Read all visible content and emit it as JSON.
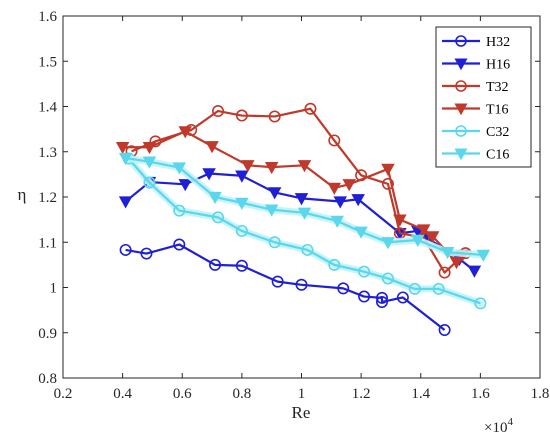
{
  "chart_data": {
    "type": "line",
    "xlabel": "Re",
    "ylabel": "η",
    "x_multiplier_label": "×10",
    "x_multiplier_exp": "4",
    "xlim": [
      0.2,
      1.8
    ],
    "ylim": [
      0.8,
      1.6
    ],
    "x_ticks": [
      "0.2",
      "0.4",
      "0.6",
      "0.8",
      "1",
      "1.2",
      "1.4",
      "1.6",
      "1.8"
    ],
    "y_ticks": [
      "0.8",
      "0.9",
      "1",
      "1.1",
      "1.2",
      "1.3",
      "1.4",
      "1.5",
      "1.6"
    ],
    "x_tick_values": [
      0.2,
      0.4,
      0.6,
      0.8,
      1.0,
      1.2,
      1.4,
      1.6,
      1.8
    ],
    "y_tick_values": [
      0.8,
      0.9,
      1.0,
      1.1,
      1.2,
      1.3,
      1.4,
      1.5,
      1.6
    ],
    "legend_position": "top-right",
    "grid": false,
    "series": [
      {
        "name": "H32",
        "color": "#1f1fd6",
        "marker": "circle",
        "x": [
          0.41,
          0.48,
          0.59,
          0.71,
          0.8,
          0.92,
          1.0,
          1.14,
          1.21,
          1.27,
          1.27,
          1.34,
          1.48
        ],
        "y": [
          1.083,
          1.075,
          1.095,
          1.05,
          1.048,
          1.013,
          1.006,
          0.998,
          0.98,
          0.977,
          0.968,
          0.978,
          0.906
        ]
      },
      {
        "name": "H16",
        "color": "#1f1fd6",
        "marker": "triangle-down",
        "x": [
          0.41,
          0.49,
          0.61,
          0.69,
          0.8,
          0.91,
          1.0,
          1.13,
          1.19,
          1.33,
          1.39,
          1.42,
          1.53,
          1.58
        ],
        "y": [
          1.19,
          1.233,
          1.228,
          1.252,
          1.247,
          1.21,
          1.197,
          1.19,
          1.195,
          1.12,
          1.125,
          1.11,
          1.063,
          1.037
        ]
      },
      {
        "name": "T32",
        "color": "#c0392b",
        "marker": "circle",
        "x": [
          0.43,
          0.51,
          0.63,
          0.72,
          0.8,
          0.91,
          1.03,
          1.11,
          1.2,
          1.29,
          1.33,
          1.41,
          1.48,
          1.55
        ],
        "y": [
          1.301,
          1.323,
          1.348,
          1.39,
          1.38,
          1.378,
          1.395,
          1.325,
          1.248,
          1.229,
          1.12,
          1.11,
          1.033,
          1.076
        ]
      },
      {
        "name": "T16",
        "color": "#c0392b",
        "marker": "triangle-down",
        "x": [
          0.4,
          0.49,
          0.61,
          0.7,
          0.82,
          0.9,
          1.01,
          1.11,
          1.16,
          1.29,
          1.33,
          1.41,
          1.44,
          1.52,
          1.54
        ],
        "y": [
          1.31,
          1.31,
          1.345,
          1.312,
          1.27,
          1.266,
          1.27,
          1.22,
          1.228,
          1.262,
          1.15,
          1.128,
          1.113,
          1.056,
          1.072
        ]
      },
      {
        "name": "C32",
        "color": "#5ad7ea",
        "marker": "circle",
        "x": [
          0.42,
          0.49,
          0.59,
          0.72,
          0.8,
          0.91,
          1.02,
          1.11,
          1.21,
          1.29,
          1.38,
          1.46,
          1.6
        ],
        "y": [
          1.285,
          1.232,
          1.17,
          1.155,
          1.125,
          1.1,
          1.083,
          1.05,
          1.035,
          1.02,
          0.997,
          0.997,
          0.965
        ]
      },
      {
        "name": "C16",
        "color": "#5ad7ea",
        "marker": "triangle-down",
        "x": [
          0.41,
          0.49,
          0.59,
          0.71,
          0.8,
          0.9,
          1.01,
          1.12,
          1.2,
          1.29,
          1.39,
          1.49,
          1.61
        ],
        "y": [
          1.286,
          1.278,
          1.265,
          1.2,
          1.187,
          1.172,
          1.165,
          1.147,
          1.123,
          1.1,
          1.105,
          1.078,
          1.072
        ]
      }
    ]
  }
}
